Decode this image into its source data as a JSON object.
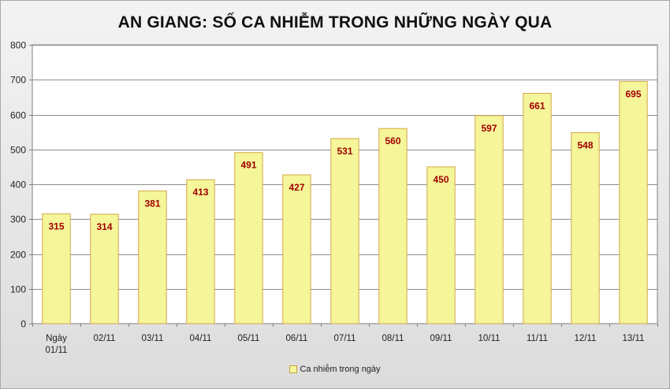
{
  "chart_data": {
    "type": "bar",
    "title": "AN GIANG: SỐ CA NHIỄM TRONG NHỮNG NGÀY QUA",
    "categories": [
      "Ngày 01/11",
      "02/11",
      "03/11",
      "04/11",
      "05/11",
      "06/11",
      "07/11",
      "08/11",
      "09/11",
      "10/11",
      "11/11",
      "12/11",
      "13/11"
    ],
    "series": [
      {
        "name": "Ca nhiễm trong ngày",
        "values": [
          315,
          314,
          381,
          413,
          491,
          427,
          531,
          560,
          450,
          597,
          661,
          548,
          695
        ]
      }
    ],
    "xlabel": "",
    "ylabel": "",
    "ylim": [
      0,
      800
    ],
    "yticks": [
      0,
      100,
      200,
      300,
      400,
      500,
      600,
      700,
      800
    ],
    "grid": true,
    "legend_position": "bottom",
    "colors": {
      "bar_fill": "#f5f59a",
      "bar_stroke": "#d4a848",
      "data_label": "#a00000",
      "plot_bg": "#ffffff",
      "grid": "#8c8c8c"
    }
  }
}
